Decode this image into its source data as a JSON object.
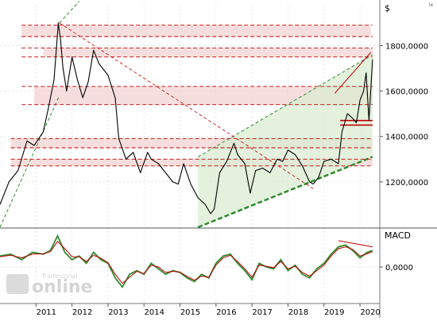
{
  "header": {
    "currency": "$",
    "corner_mark": "lx"
  },
  "watermark": {
    "brand": "online",
    "sub": "Tradesignal"
  },
  "colors": {
    "price": "#000000",
    "resistance": "#c00000",
    "zone_fill": "#f5d6d6",
    "channel": "#2e8b2e",
    "channel_fill": "#d9ecd2",
    "macd": "#2e8b2e",
    "signal": "#c00000",
    "grid": "#cfcfcf"
  },
  "chart_data": [
    {
      "type": "line",
      "title": "",
      "ylabel": "$",
      "x_ticks": [
        "2011",
        "2012",
        "2013",
        "2014",
        "2015",
        "2016",
        "2017",
        "2018",
        "2019",
        "2020"
      ],
      "y_ticks": [
        "1200,0000",
        "1400,0000",
        "1600,0000",
        "1800,0000"
      ],
      "x_range": [
        2010.0,
        2020.55
      ],
      "ylim": [
        1000,
        1980
      ],
      "series": [
        {
          "x": [
            2010.0,
            2010.25,
            2010.5,
            2010.75,
            2010.95,
            2011.2,
            2011.35,
            2011.5,
            2011.62,
            2011.68,
            2011.75,
            2011.85,
            2012.0,
            2012.15,
            2012.3,
            2012.45,
            2012.6,
            2012.75,
            2012.9,
            2013.0,
            2013.2,
            2013.3,
            2013.5,
            2013.7,
            2013.9,
            2014.1,
            2014.2,
            2014.4,
            2014.6,
            2014.8,
            2014.95,
            2015.1,
            2015.3,
            2015.5,
            2015.7,
            2015.85,
            2015.95,
            2016.1,
            2016.3,
            2016.5,
            2016.6,
            2016.8,
            2016.95,
            2017.1,
            2017.3,
            2017.5,
            2017.7,
            2017.85,
            2018.0,
            2018.2,
            2018.4,
            2018.6,
            2018.7,
            2018.85,
            2019.0,
            2019.2,
            2019.4,
            2019.5,
            2019.65,
            2019.8,
            2019.9,
            2020.0,
            2020.1,
            2020.17,
            2020.25,
            2020.35
          ],
          "y": [
            1100,
            1200,
            1250,
            1380,
            1360,
            1420,
            1530,
            1650,
            1900,
            1830,
            1700,
            1600,
            1750,
            1650,
            1570,
            1640,
            1780,
            1720,
            1690,
            1670,
            1570,
            1390,
            1300,
            1330,
            1240,
            1330,
            1300,
            1280,
            1240,
            1200,
            1190,
            1280,
            1190,
            1130,
            1100,
            1060,
            1080,
            1240,
            1290,
            1370,
            1320,
            1280,
            1150,
            1250,
            1260,
            1240,
            1300,
            1290,
            1340,
            1320,
            1270,
            1200,
            1190,
            1220,
            1290,
            1300,
            1280,
            1420,
            1500,
            1480,
            1460,
            1560,
            1600,
            1680,
            1470,
            1740
          ],
          "color": "#000000"
        }
      ],
      "horizontal_levels": [
        1890,
        1840,
        1790,
        1750,
        1620,
        1540,
        1470,
        1450,
        1390,
        1350,
        1300,
        1270
      ]
    },
    {
      "type": "line",
      "title": "",
      "ylabel": "MACD",
      "y_ticks": [
        "0,0000"
      ],
      "ylim": [
        -1.0,
        1.0
      ],
      "series": [
        {
          "x": [
            2010.0,
            2010.3,
            2010.6,
            2010.9,
            2011.2,
            2011.4,
            2011.6,
            2011.8,
            2012.0,
            2012.2,
            2012.4,
            2012.6,
            2012.8,
            2013.0,
            2013.2,
            2013.4,
            2013.6,
            2013.8,
            2014.0,
            2014.2,
            2014.4,
            2014.6,
            2014.8,
            2015.0,
            2015.2,
            2015.4,
            2015.6,
            2015.8,
            2016.0,
            2016.2,
            2016.4,
            2016.6,
            2016.8,
            2017.0,
            2017.2,
            2017.4,
            2017.6,
            2017.8,
            2018.0,
            2018.2,
            2018.4,
            2018.6,
            2018.8,
            2019.0,
            2019.2,
            2019.4,
            2019.6,
            2019.8,
            2020.0,
            2020.2,
            2020.35
          ],
          "y": [
            0.3,
            0.35,
            0.2,
            0.4,
            0.35,
            0.45,
            0.85,
            0.4,
            0.2,
            0.3,
            0.1,
            0.4,
            0.2,
            0.1,
            -0.3,
            -0.55,
            -0.2,
            -0.1,
            -0.2,
            0.1,
            -0.05,
            -0.2,
            -0.1,
            -0.15,
            -0.3,
            -0.4,
            -0.2,
            -0.3,
            0.1,
            0.3,
            0.35,
            0.1,
            -0.1,
            -0.35,
            0.1,
            0.0,
            -0.05,
            0.2,
            -0.1,
            0.05,
            -0.2,
            -0.3,
            -0.05,
            0.1,
            0.35,
            0.55,
            0.6,
            0.45,
            0.25,
            0.4,
            0.45
          ],
          "color": "#2e8b2e"
        },
        {
          "x": [
            2010.0,
            2010.3,
            2010.6,
            2010.9,
            2011.2,
            2011.4,
            2011.6,
            2011.8,
            2012.0,
            2012.2,
            2012.4,
            2012.6,
            2012.8,
            2013.0,
            2013.2,
            2013.4,
            2013.6,
            2013.8,
            2014.0,
            2014.2,
            2014.4,
            2014.6,
            2014.8,
            2015.0,
            2015.2,
            2015.4,
            2015.6,
            2015.8,
            2016.0,
            2016.2,
            2016.4,
            2016.6,
            2016.8,
            2017.0,
            2017.2,
            2017.4,
            2017.6,
            2017.8,
            2018.0,
            2018.2,
            2018.4,
            2018.6,
            2018.8,
            2019.0,
            2019.2,
            2019.4,
            2019.6,
            2019.8,
            2020.0,
            2020.2,
            2020.35
          ],
          "y": [
            0.28,
            0.32,
            0.25,
            0.35,
            0.36,
            0.42,
            0.7,
            0.5,
            0.28,
            0.28,
            0.15,
            0.32,
            0.24,
            0.12,
            -0.2,
            -0.45,
            -0.28,
            -0.12,
            -0.18,
            0.05,
            0.0,
            -0.15,
            -0.12,
            -0.14,
            -0.26,
            -0.36,
            -0.25,
            -0.28,
            0.05,
            0.25,
            0.32,
            0.15,
            -0.05,
            -0.28,
            0.05,
            0.02,
            -0.02,
            0.15,
            -0.05,
            0.02,
            -0.15,
            -0.25,
            -0.1,
            0.05,
            0.3,
            0.5,
            0.55,
            0.48,
            0.3,
            0.36,
            0.42
          ],
          "color": "#c00000"
        }
      ]
    }
  ]
}
